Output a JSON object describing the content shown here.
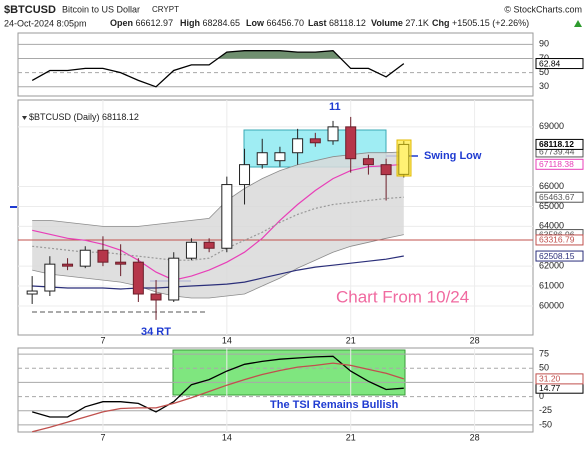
{
  "header": {
    "symbol": "$BTCUSD",
    "description": "Bitcoin to US Dollar",
    "exchange": "CRYPT",
    "credit": "© StockCharts.com",
    "datetime": "24-Oct-2024 8:05pm",
    "stats": [
      {
        "label": "Open",
        "value": "66612.97"
      },
      {
        "label": "High",
        "value": "68284.65"
      },
      {
        "label": "Low",
        "value": "66456.70"
      },
      {
        "label": "Last",
        "value": "68118.12"
      },
      {
        "label": "Volume",
        "value": "27.1K"
      },
      {
        "label": "Chg",
        "value": "+1505.15 (+2.26%)"
      }
    ]
  },
  "chart_data": [
    {
      "type": "line",
      "x": [
        3,
        4,
        5,
        6,
        7,
        8,
        9,
        10,
        11,
        12,
        13,
        14,
        15,
        16,
        17,
        18,
        19,
        20,
        21,
        22,
        23,
        24
      ],
      "xlim": [
        2.2,
        31.3
      ],
      "series": [
        {
          "color": "#000000",
          "values": [
            39,
            53,
            53,
            56,
            56,
            50,
            39,
            30,
            53,
            61,
            61,
            79,
            81,
            81,
            81,
            79,
            79,
            81,
            56,
            56,
            44,
            62.84
          ],
          "last_value_box": true
        }
      ],
      "overbought": 70,
      "overbought_fill": "#6f8f6f",
      "ylim": [
        17,
        106
      ],
      "yticks": [
        30,
        50,
        70,
        90
      ],
      "grid": true
    },
    {
      "type": "candlestick",
      "legend": "$BTCUSD (Daily)",
      "x": [
        3,
        4,
        5,
        6,
        7,
        8,
        9,
        10,
        11,
        12,
        13,
        14,
        15,
        16,
        17,
        18,
        19,
        20,
        21,
        22,
        23,
        24
      ],
      "xlim": [
        2.2,
        31.3
      ],
      "open": [
        60600,
        60750,
        62100,
        62000,
        62800,
        62200,
        62200,
        60600,
        60300,
        62400,
        63200,
        62900,
        66100,
        67100,
        67300,
        67700,
        68400,
        68300,
        69000,
        67400,
        67100,
        66612.97
      ],
      "high": [
        61500,
        62500,
        62400,
        63000,
        63500,
        63100,
        62400,
        61300,
        62700,
        63400,
        63400,
        66500,
        67900,
        68400,
        68000,
        68900,
        68700,
        69300,
        69500,
        67600,
        67400,
        68284.65
      ],
      "low": [
        60100,
        60500,
        61800,
        61900,
        62000,
        61500,
        60200,
        59300,
        60200,
        62300,
        62700,
        62700,
        65100,
        66900,
        67000,
        67100,
        68000,
        68100,
        66700,
        66600,
        65300,
        66456.7
      ],
      "close": [
        60750,
        62100,
        62000,
        62800,
        62200,
        62100,
        60600,
        60300,
        62400,
        63200,
        62900,
        66100,
        67100,
        67700,
        67700,
        68400,
        68200,
        69000,
        67400,
        67100,
        66600,
        68118.12
      ],
      "up_color": "#ffffff",
      "down_color": "#b5364a",
      "bands": {
        "upper": [
          64300,
          64300,
          64200,
          64100,
          64000,
          64000,
          64000,
          64100,
          64200,
          64300,
          64400,
          65300,
          65900,
          66400,
          66800,
          67100,
          67300,
          67500,
          67600,
          67700,
          67700,
          67739.44
        ],
        "lower": [
          61800,
          61600,
          61500,
          61400,
          61300,
          61200,
          61000,
          60700,
          60500,
          60400,
          60400,
          60500,
          60600,
          61000,
          61400,
          61900,
          62300,
          62700,
          63000,
          63200,
          63400,
          63586.96
        ],
        "fill": "#d9d9d9",
        "color": "#8c8c8c"
      },
      "overlays": [
        {
          "color": "#e83fb8",
          "values": [
            63800,
            63600,
            63400,
            63300,
            63100,
            62800,
            62300,
            61700,
            61300,
            61500,
            61800,
            62200,
            62700,
            63400,
            64300,
            65100,
            65800,
            66400,
            66800,
            67000,
            67050,
            67118.38
          ]
        },
        {
          "color": "#999999",
          "dashed": true,
          "values": [
            63000,
            62900,
            62800,
            62700,
            62700,
            62600,
            62500,
            62400,
            62300,
            62300,
            62400,
            62900,
            63300,
            63700,
            64200,
            64600,
            64900,
            65100,
            65200,
            65300,
            65400,
            65463.67
          ]
        },
        {
          "color": "#2b2f7a",
          "values": [
            61000,
            60950,
            60900,
            60900,
            60900,
            60850,
            60900,
            60900,
            60950,
            61000,
            61050,
            61100,
            61200,
            61400,
            61600,
            61800,
            61950,
            62050,
            62150,
            62250,
            62350,
            62508.15
          ]
        }
      ],
      "reference_line": 63316.79,
      "reference_color": "#c0504d",
      "annotations": [
        "11",
        "Swing Low",
        "34 RT",
        "Chart From 10/24"
      ],
      "ylim": [
        58540,
        70350
      ],
      "yticks": [
        60000,
        61000,
        62000,
        64000,
        65000,
        66000,
        69000
      ],
      "xticks": [
        7,
        14,
        21,
        28
      ],
      "grid": true
    },
    {
      "type": "line",
      "x": [
        3,
        4,
        5,
        6,
        7,
        8,
        9,
        10,
        11,
        12,
        13,
        14,
        15,
        16,
        17,
        18,
        19,
        20,
        21,
        22,
        23,
        24
      ],
      "xlim": [
        2.2,
        31.3
      ],
      "series": [
        {
          "color": "#000000",
          "values": [
            -27,
            -36,
            -36,
            -18,
            -9,
            -9,
            -12,
            -27,
            -9,
            21,
            30,
            45,
            57,
            62,
            66,
            68,
            70,
            71,
            45,
            27,
            12.5,
            14.77
          ],
          "last_value_box": true
        },
        {
          "color": "#c0504d",
          "values": [
            -62,
            -54,
            -45,
            -36,
            -27,
            -21,
            -20,
            -20,
            -12,
            -2,
            9,
            20,
            30,
            39,
            46,
            52,
            55,
            59,
            55,
            48,
            41,
            {
              "value": 31.2,
              "label": "31.20"
            }
          ],
          "last_value_box": true
        }
      ],
      "annotations": [
        "The TSI Remains Bullish"
      ],
      "ylim": [
        -62.5,
        85.7
      ],
      "yticks": [
        -50,
        -25,
        0,
        25,
        50,
        75
      ],
      "xticks": [
        7,
        14,
        21,
        28
      ],
      "grid": true
    }
  ]
}
